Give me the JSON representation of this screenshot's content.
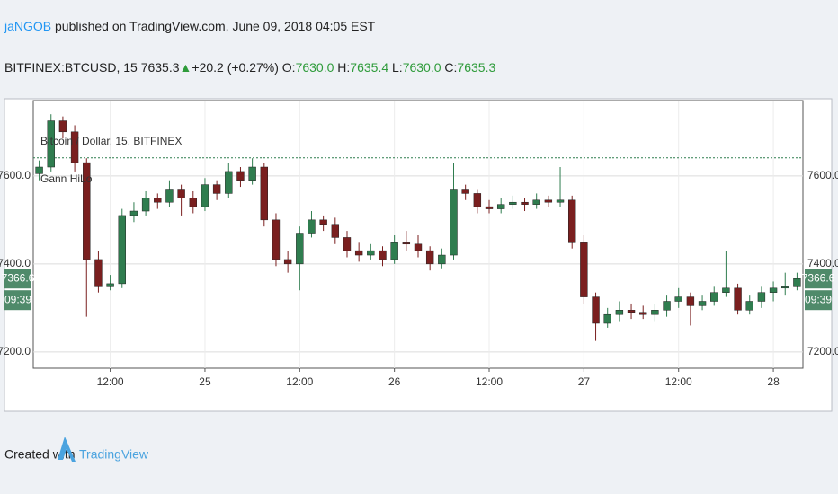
{
  "header": {
    "author": "jaNGOB",
    "published": "published on TradingView.com, June 09, 2018 04:05 EST",
    "symbol": "BITFINEX:BTCUSD, 15",
    "last": "7635.3",
    "arrow": "▲",
    "change": "+20.2 (+0.27%)",
    "open_label": "O:",
    "open": "7630.0",
    "high_label": "H:",
    "high": "7635.4",
    "low_label": "L:",
    "low": "7630.0",
    "close_label": "C:",
    "close": "7635.3"
  },
  "chart_data": {
    "type": "candlestick",
    "title": "Bitcoin / Dollar, 15, BITFINEX",
    "indicator": "Gann HiLo",
    "categories": [
      null,
      null,
      null,
      null,
      null,
      null,
      "12:00",
      null,
      null,
      null,
      null,
      null,
      null,
      null,
      "25",
      null,
      null,
      null,
      null,
      null,
      null,
      null,
      "12:00",
      null,
      null,
      null,
      null,
      null,
      null,
      null,
      "26",
      null,
      null,
      null,
      null,
      null,
      null,
      null,
      "12:00",
      null,
      null,
      null,
      null,
      null,
      null,
      null,
      "27",
      null,
      null,
      null,
      null,
      null,
      null,
      null,
      "12:00",
      null,
      null,
      null,
      null,
      null,
      null,
      null,
      "28",
      null,
      null
    ],
    "open": [
      7605,
      7620,
      7725,
      7700,
      7630,
      7410,
      7350,
      7355,
      7510,
      7520,
      7550,
      7540,
      7570,
      7550,
      7530,
      7580,
      7560,
      7610,
      7590,
      7620,
      7500,
      7410,
      7400,
      7470,
      7500,
      7490,
      7460,
      7430,
      7420,
      7430,
      7410,
      7450,
      7445,
      7430,
      7400,
      7420,
      7570,
      7560,
      7530,
      7525,
      7535,
      7540,
      7535,
      7545,
      7540,
      7545,
      7450,
      7325,
      7265,
      7285,
      7295,
      7290,
      7285,
      7295,
      7315,
      7325,
      7305,
      7315,
      7335,
      7345,
      7295,
      7315,
      7335,
      7345,
      7350
    ],
    "high": [
      7635,
      7740,
      7735,
      7715,
      7640,
      7430,
      7375,
      7525,
      7540,
      7565,
      7560,
      7590,
      7580,
      7565,
      7595,
      7590,
      7630,
      7620,
      7640,
      7630,
      7515,
      7430,
      7485,
      7520,
      7510,
      7505,
      7475,
      7450,
      7445,
      7440,
      7465,
      7475,
      7465,
      7440,
      7435,
      7630,
      7580,
      7570,
      7545,
      7550,
      7555,
      7550,
      7560,
      7555,
      7620,
      7555,
      7465,
      7335,
      7300,
      7315,
      7310,
      7305,
      7310,
      7330,
      7345,
      7335,
      7330,
      7350,
      7430,
      7355,
      7330,
      7350,
      7360,
      7380,
      7380
    ],
    "low": [
      7590,
      7610,
      7685,
      7610,
      7280,
      7335,
      7340,
      7345,
      7495,
      7510,
      7525,
      7530,
      7510,
      7515,
      7520,
      7545,
      7550,
      7575,
      7580,
      7485,
      7395,
      7380,
      7340,
      7460,
      7475,
      7445,
      7415,
      7405,
      7410,
      7395,
      7400,
      7430,
      7415,
      7385,
      7390,
      7410,
      7545,
      7515,
      7515,
      7515,
      7525,
      7520,
      7525,
      7530,
      7530,
      7435,
      7310,
      7225,
      7255,
      7270,
      7275,
      7275,
      7270,
      7280,
      7300,
      7260,
      7295,
      7305,
      7325,
      7285,
      7285,
      7300,
      7315,
      7330,
      7340
    ],
    "close": [
      7620,
      7725,
      7700,
      7630,
      7410,
      7350,
      7355,
      7510,
      7520,
      7550,
      7540,
      7570,
      7550,
      7530,
      7580,
      7560,
      7610,
      7590,
      7620,
      7500,
      7410,
      7400,
      7470,
      7500,
      7490,
      7460,
      7430,
      7420,
      7430,
      7410,
      7450,
      7445,
      7430,
      7400,
      7420,
      7570,
      7560,
      7530,
      7525,
      7535,
      7540,
      7535,
      7545,
      7540,
      7545,
      7450,
      7325,
      7265,
      7285,
      7295,
      7290,
      7285,
      7295,
      7315,
      7325,
      7305,
      7315,
      7335,
      7345,
      7295,
      7315,
      7335,
      7345,
      7350,
      7366.6
    ],
    "up_color": "#2f7d4f",
    "down_color": "#7a1f1f",
    "tag_color": "#4f8a6a",
    "ylim": [
      7163,
      7771
    ],
    "yticks": [
      {
        "value": 7200,
        "label": "7200.0"
      },
      {
        "value": 7400,
        "label": "7400.0"
      },
      {
        "value": 7600,
        "label": "7600.0"
      }
    ],
    "reference_line": 7641,
    "countdown": "09:39",
    "grid": true
  },
  "footer": {
    "created": "Created with",
    "brand": "TradingView"
  }
}
